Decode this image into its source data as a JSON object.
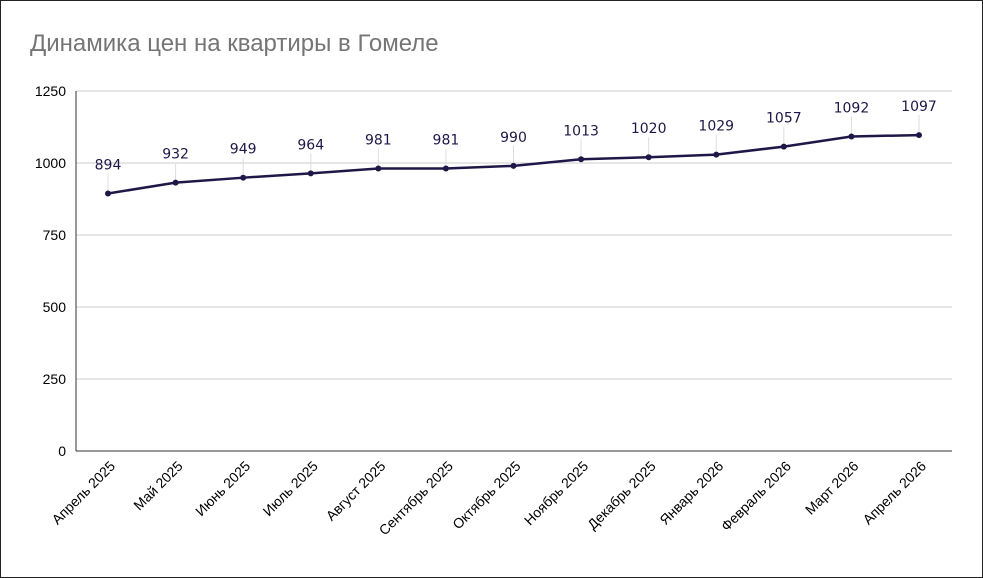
{
  "chart_data": {
    "type": "line",
    "title": "Динамика цен на квартиры в Гомеле",
    "xlabel": "",
    "ylabel": "",
    "ylim": [
      0,
      1250
    ],
    "yticks": [
      "0",
      "250",
      "500",
      "750",
      "1000",
      "1250"
    ],
    "grid": true,
    "legend": "none",
    "categories": [
      "Апрель 2025",
      "Май 2025",
      "Июнь 2025",
      "Июль 2025",
      "Август 2025",
      "Сентябрь 2025",
      "Октябрь 2025",
      "Ноябрь 2025",
      "Декабрь 2025",
      "Январь 2026",
      "Февраль 2026",
      "Март 2026",
      "Апрель 2026"
    ],
    "values": [
      894,
      932,
      949,
      964,
      981,
      981,
      990,
      1013,
      1020,
      1029,
      1057,
      1092,
      1097
    ],
    "line_color": "#1e1848",
    "grid_color": "#cccccc",
    "title_color": "#757575"
  }
}
